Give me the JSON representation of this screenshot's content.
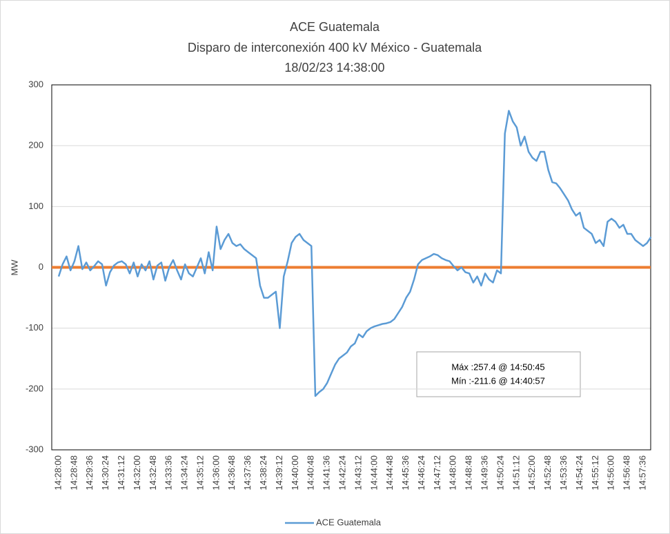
{
  "chart_data": {
    "type": "line",
    "title": "ACE Guatemala",
    "subtitle": "Disparo de interconexión 400 kV México - Guatemala",
    "date": "18/02/23 14:38:00",
    "y_label": "MW",
    "ylim": [
      -300,
      300
    ],
    "yticks": [
      -300,
      -200,
      -100,
      0,
      100,
      200,
      300
    ],
    "grid": true,
    "xtick_every": 4,
    "zero_line": {
      "value": 0,
      "color": "#ed7d31"
    },
    "annotations": [
      "Máx :257.4 @ 14:50:45",
      "Mín :-211.6 @ 14:40:57"
    ],
    "x": [
      "14:28:00",
      "14:28:12",
      "14:28:24",
      "14:28:36",
      "14:28:48",
      "14:29:00",
      "14:29:12",
      "14:29:24",
      "14:29:36",
      "14:29:48",
      "14:30:00",
      "14:30:12",
      "14:30:24",
      "14:30:36",
      "14:30:48",
      "14:31:00",
      "14:31:12",
      "14:31:24",
      "14:31:36",
      "14:31:48",
      "14:32:00",
      "14:32:12",
      "14:32:24",
      "14:32:36",
      "14:32:48",
      "14:33:00",
      "14:33:12",
      "14:33:24",
      "14:33:36",
      "14:33:48",
      "14:34:00",
      "14:34:12",
      "14:34:24",
      "14:34:36",
      "14:34:48",
      "14:35:00",
      "14:35:12",
      "14:35:24",
      "14:35:36",
      "14:35:48",
      "14:36:00",
      "14:36:12",
      "14:36:24",
      "14:36:36",
      "14:36:48",
      "14:37:00",
      "14:37:12",
      "14:37:24",
      "14:37:36",
      "14:37:48",
      "14:38:00",
      "14:38:12",
      "14:38:24",
      "14:38:36",
      "14:38:48",
      "14:39:00",
      "14:39:12",
      "14:39:24",
      "14:39:36",
      "14:39:48",
      "14:40:00",
      "14:40:12",
      "14:40:24",
      "14:40:36",
      "14:40:48",
      "14:41:00",
      "14:41:12",
      "14:41:24",
      "14:41:36",
      "14:41:48",
      "14:42:00",
      "14:42:12",
      "14:42:24",
      "14:42:36",
      "14:42:48",
      "14:43:00",
      "14:43:12",
      "14:43:24",
      "14:43:36",
      "14:43:48",
      "14:44:00",
      "14:44:12",
      "14:44:24",
      "14:44:36",
      "14:44:48",
      "14:45:00",
      "14:45:12",
      "14:45:24",
      "14:45:36",
      "14:45:48",
      "14:46:00",
      "14:46:12",
      "14:46:24",
      "14:46:36",
      "14:46:48",
      "14:47:00",
      "14:47:12",
      "14:47:24",
      "14:47:36",
      "14:47:48",
      "14:48:00",
      "14:48:12",
      "14:48:24",
      "14:48:36",
      "14:48:48",
      "14:49:00",
      "14:49:12",
      "14:49:24",
      "14:49:36",
      "14:49:48",
      "14:50:00",
      "14:50:12",
      "14:50:24",
      "14:50:36",
      "14:50:48",
      "14:51:00",
      "14:51:12",
      "14:51:24",
      "14:51:36",
      "14:51:48",
      "14:52:00",
      "14:52:12",
      "14:52:24",
      "14:52:36",
      "14:52:48",
      "14:53:00",
      "14:53:12",
      "14:53:24",
      "14:53:36",
      "14:53:48",
      "14:54:00",
      "14:54:12",
      "14:54:24",
      "14:54:36",
      "14:54:48",
      "14:55:00",
      "14:55:12",
      "14:55:24",
      "14:55:36",
      "14:55:48",
      "14:56:00",
      "14:56:12",
      "14:56:24",
      "14:56:36",
      "14:56:48",
      "14:57:00",
      "14:57:12",
      "14:57:24",
      "14:57:36",
      "14:57:48",
      "14:58:00"
    ],
    "series": [
      {
        "name": "ACE Guatemala",
        "color": "#5b9bd5",
        "values": [
          -15,
          5,
          18,
          -5,
          10,
          35,
          -3,
          8,
          -5,
          2,
          10,
          5,
          -30,
          -8,
          3,
          8,
          10,
          5,
          -10,
          8,
          -15,
          5,
          -5,
          10,
          -20,
          3,
          8,
          -22,
          0,
          12,
          -5,
          -20,
          5,
          -10,
          -15,
          0,
          15,
          -10,
          25,
          -5,
          67,
          30,
          45,
          55,
          40,
          35,
          38,
          30,
          25,
          20,
          15,
          -30,
          -50,
          -50,
          -45,
          -40,
          -100,
          -15,
          10,
          40,
          50,
          55,
          45,
          40,
          35,
          -211.6,
          -205,
          -200,
          -190,
          -175,
          -160,
          -150,
          -145,
          -140,
          -130,
          -125,
          -110,
          -115,
          -105,
          -100,
          -97,
          -95,
          -93,
          -92,
          -90,
          -85,
          -75,
          -65,
          -50,
          -40,
          -20,
          5,
          12,
          15,
          18,
          22,
          20,
          15,
          12,
          10,
          2,
          -5,
          0,
          -8,
          -10,
          -25,
          -15,
          -30,
          -10,
          -20,
          -25,
          -5,
          -10,
          220,
          257.4,
          240,
          230,
          200,
          215,
          190,
          180,
          175,
          190,
          190,
          160,
          140,
          138,
          130,
          120,
          110,
          95,
          85,
          90,
          65,
          60,
          55,
          40,
          45,
          35,
          75,
          80,
          75,
          65,
          70,
          55,
          55,
          45,
          40,
          35,
          40,
          50
        ]
      }
    ]
  }
}
